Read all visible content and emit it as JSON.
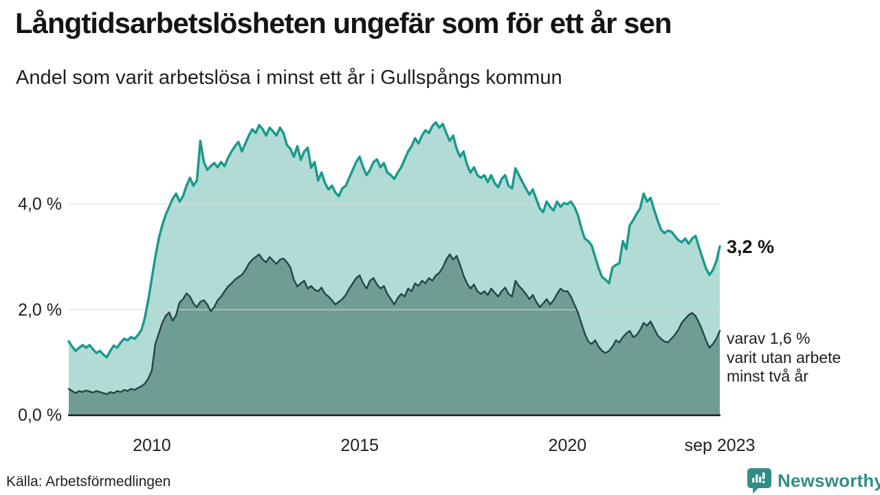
{
  "header": {
    "title": "Långtidsarbetslösheten ungefär som för ett år sen",
    "subtitle": "Andel som varit arbetslösa i minst ett år i Gullspångs kommun"
  },
  "annotations": {
    "end_value_label": "3,2 %",
    "secondary_label_lines": [
      "varav 1,6 %",
      "varit utan arbete",
      "minst två år"
    ]
  },
  "footer": {
    "source": "Källa: Arbetsförmedlingen",
    "brand": "Newsworthy"
  },
  "colors": {
    "primary_line": "#1a9a8e",
    "primary_fill": "#b3dbd5",
    "secondary_line": "#254749",
    "secondary_fill": "#6f9d94",
    "gridline": "#d9d9d9",
    "baseline": "#1a1a1a",
    "text": "#1f1f1f",
    "brand_teal": "#2f8e87"
  },
  "chart_data": {
    "type": "area",
    "title": "Långtidsarbetslösheten ungefär som för ett år sen",
    "subtitle": "Andel som varit arbetslösa i minst ett år i Gullspångs kommun",
    "x_start": "2008-01",
    "x_end": "2023-09",
    "frequency": "monthly",
    "ylim": [
      0,
      5.8
    ],
    "grid": "horizontal",
    "legend_position": "right-annotations",
    "y_ticks": [
      {
        "label": "4,0 %",
        "value": 4.0
      },
      {
        "label": "2,0 %",
        "value": 2.0
      },
      {
        "label": "0,0 %",
        "value": 0.0
      }
    ],
    "x_ticks": [
      {
        "label": "2010",
        "month_index": 24
      },
      {
        "label": "2015",
        "month_index": 84
      },
      {
        "label": "2020",
        "month_index": 144
      },
      {
        "label": "sep 2023",
        "month_index": 188
      }
    ],
    "series": [
      {
        "name": "Andel arbetslösa minst ett år",
        "color": "#1a9a8e",
        "fill": "#b3dbd5",
        "stroke_width": 3.5,
        "end_value": 3.2,
        "values": [
          1.4,
          1.3,
          1.22,
          1.28,
          1.33,
          1.28,
          1.33,
          1.25,
          1.18,
          1.22,
          1.15,
          1.1,
          1.22,
          1.32,
          1.28,
          1.38,
          1.45,
          1.42,
          1.48,
          1.45,
          1.52,
          1.62,
          1.85,
          2.2,
          2.6,
          3.0,
          3.35,
          3.6,
          3.8,
          3.95,
          4.1,
          4.2,
          4.05,
          4.15,
          4.35,
          4.5,
          4.35,
          4.45,
          5.2,
          4.8,
          4.65,
          4.72,
          4.78,
          4.7,
          4.8,
          4.72,
          4.88,
          5.0,
          5.1,
          5.18,
          5.0,
          5.15,
          5.3,
          5.42,
          5.35,
          5.5,
          5.42,
          5.3,
          5.45,
          5.38,
          5.3,
          5.45,
          5.35,
          5.12,
          5.05,
          4.9,
          5.1,
          4.84,
          5.0,
          5.07,
          4.69,
          4.8,
          4.45,
          4.6,
          4.4,
          4.28,
          4.35,
          4.22,
          4.15,
          4.3,
          4.35,
          4.5,
          4.65,
          4.8,
          4.9,
          4.7,
          4.55,
          4.65,
          4.8,
          4.85,
          4.7,
          4.78,
          4.6,
          4.55,
          4.48,
          4.6,
          4.7,
          4.85,
          5.0,
          5.1,
          5.25,
          5.15,
          5.3,
          5.4,
          5.35,
          5.48,
          5.55,
          5.45,
          5.52,
          5.35,
          5.2,
          5.3,
          5.05,
          4.9,
          5.0,
          4.75,
          4.6,
          4.7,
          4.55,
          4.5,
          4.55,
          4.42,
          4.55,
          4.4,
          4.32,
          4.48,
          4.55,
          4.35,
          4.3,
          4.68,
          4.55,
          4.42,
          4.3,
          4.18,
          4.28,
          4.1,
          3.92,
          3.85,
          4.05,
          3.95,
          3.88,
          4.05,
          3.95,
          4.02,
          4.0,
          4.05,
          3.95,
          3.8,
          3.55,
          3.35,
          3.3,
          3.22,
          3.0,
          2.79,
          2.62,
          2.57,
          2.5,
          2.8,
          2.85,
          2.88,
          3.3,
          3.15,
          3.6,
          3.7,
          3.82,
          3.92,
          4.2,
          4.05,
          4.12,
          3.9,
          3.7,
          3.52,
          3.45,
          3.5,
          3.48,
          3.4,
          3.32,
          3.28,
          3.35,
          3.25,
          3.35,
          3.4,
          3.18,
          2.98,
          2.78,
          2.66,
          2.75,
          2.92,
          3.2
        ]
      },
      {
        "name": "varav utan arbete minst två år",
        "color": "#254749",
        "fill": "#6f9d94",
        "stroke_width": 2.5,
        "end_value": 1.6,
        "values": [
          0.5,
          0.46,
          0.42,
          0.46,
          0.44,
          0.47,
          0.45,
          0.43,
          0.46,
          0.44,
          0.42,
          0.4,
          0.44,
          0.42,
          0.46,
          0.44,
          0.48,
          0.46,
          0.5,
          0.48,
          0.52,
          0.55,
          0.6,
          0.7,
          0.85,
          1.35,
          1.55,
          1.75,
          1.88,
          1.95,
          1.79,
          1.9,
          2.14,
          2.2,
          2.31,
          2.25,
          2.12,
          2.05,
          2.15,
          2.18,
          2.1,
          1.97,
          2.05,
          2.18,
          2.25,
          2.35,
          2.44,
          2.5,
          2.57,
          2.62,
          2.66,
          2.75,
          2.87,
          2.95,
          3.0,
          3.05,
          2.95,
          2.9,
          3.0,
          2.93,
          2.87,
          2.95,
          2.97,
          2.9,
          2.8,
          2.57,
          2.44,
          2.5,
          2.55,
          2.4,
          2.45,
          2.38,
          2.35,
          2.42,
          2.3,
          2.25,
          2.18,
          2.1,
          2.15,
          2.2,
          2.28,
          2.4,
          2.5,
          2.6,
          2.65,
          2.5,
          2.4,
          2.55,
          2.6,
          2.48,
          2.4,
          2.45,
          2.3,
          2.2,
          2.1,
          2.22,
          2.3,
          2.25,
          2.4,
          2.35,
          2.5,
          2.45,
          2.55,
          2.5,
          2.6,
          2.55,
          2.65,
          2.7,
          2.8,
          2.95,
          3.05,
          2.95,
          3.02,
          2.85,
          2.65,
          2.5,
          2.4,
          2.48,
          2.35,
          2.3,
          2.35,
          2.28,
          2.4,
          2.32,
          2.25,
          2.35,
          2.42,
          2.3,
          2.25,
          2.55,
          2.45,
          2.38,
          2.3,
          2.2,
          2.28,
          2.15,
          2.05,
          2.12,
          2.2,
          2.1,
          2.18,
          2.3,
          2.4,
          2.35,
          2.35,
          2.25,
          2.1,
          1.95,
          1.75,
          1.55,
          1.4,
          1.35,
          1.42,
          1.3,
          1.22,
          1.18,
          1.22,
          1.3,
          1.42,
          1.38,
          1.48,
          1.55,
          1.6,
          1.48,
          1.52,
          1.62,
          1.75,
          1.7,
          1.78,
          1.65,
          1.52,
          1.45,
          1.4,
          1.38,
          1.45,
          1.52,
          1.62,
          1.75,
          1.83,
          1.9,
          1.94,
          1.88,
          1.75,
          1.6,
          1.42,
          1.28,
          1.35,
          1.45,
          1.6
        ]
      }
    ]
  }
}
